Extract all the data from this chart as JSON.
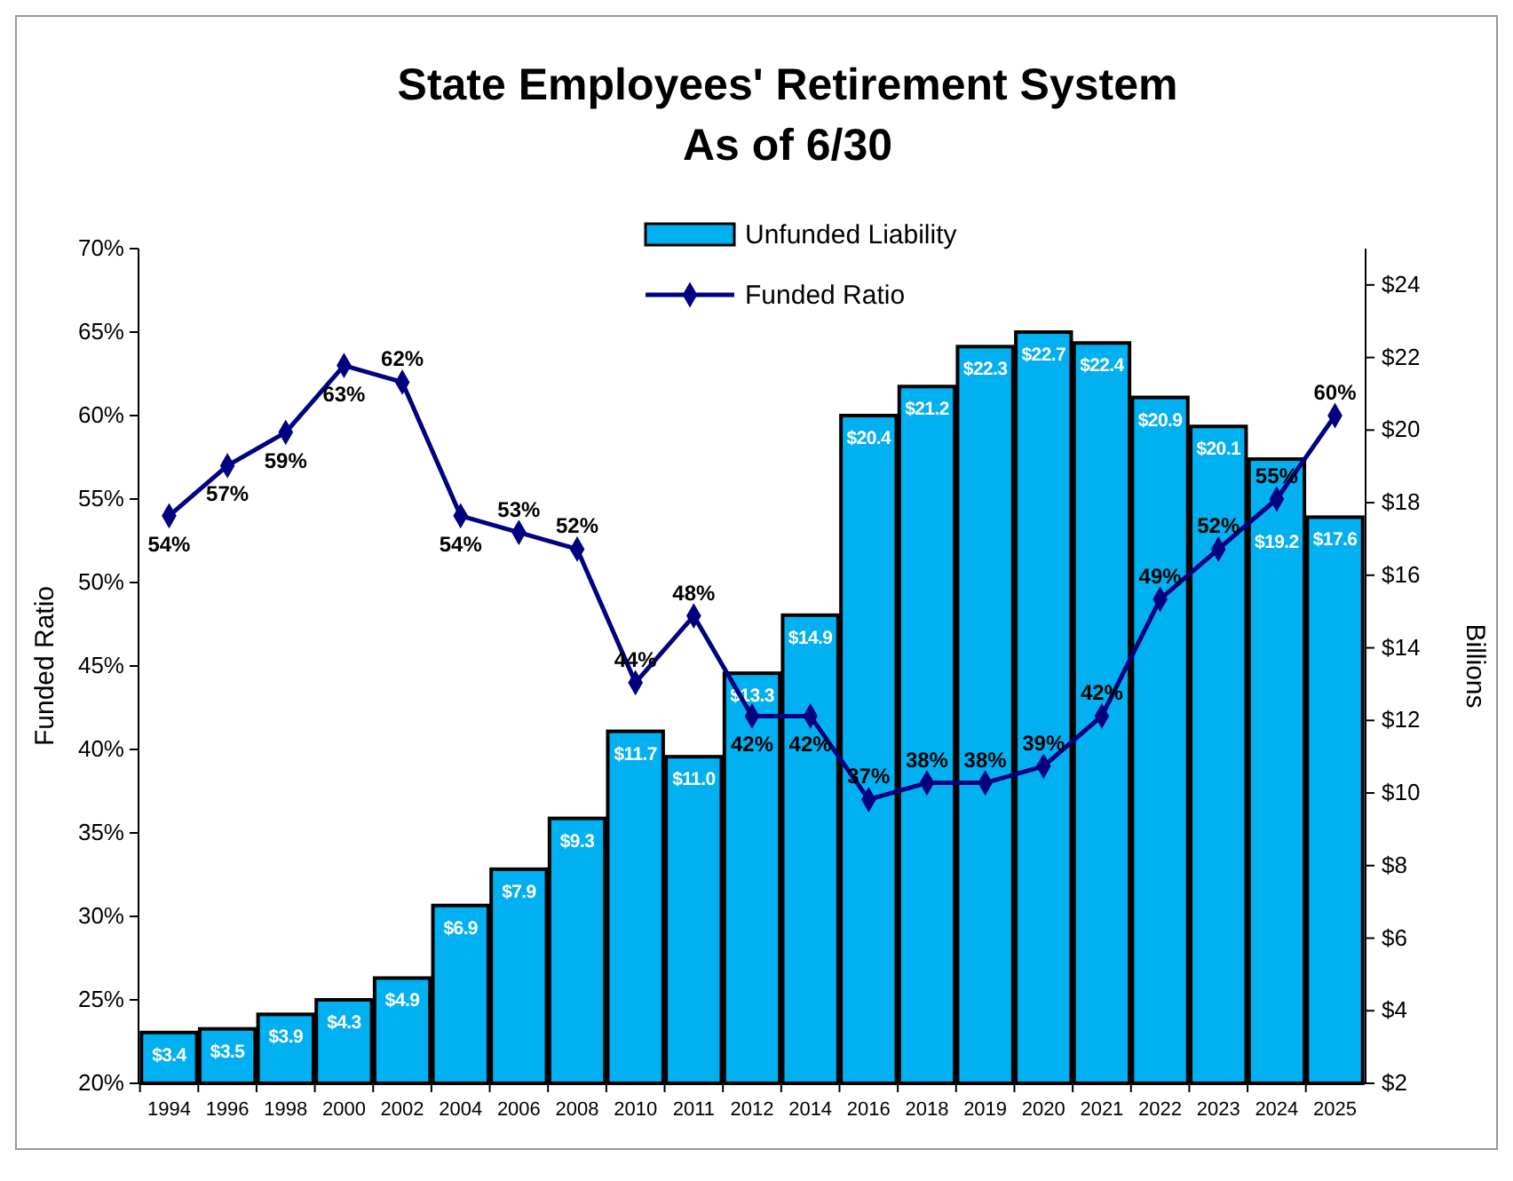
{
  "chart_data": {
    "type": "bar",
    "title": "State Employees' Retirement System\nAs of 6/30",
    "ylabel": "Funded Ratio",
    "y2label": "Billions",
    "categories": [
      "1994",
      "1996",
      "1998",
      "2000",
      "2002",
      "2004",
      "2006",
      "2008",
      "2010",
      "2011",
      "2012",
      "2014",
      "2016",
      "2018",
      "2019",
      "2020",
      "2021",
      "2022",
      "2023",
      "2024",
      "2025"
    ],
    "series": [
      {
        "name": "Unfunded Liability",
        "axis": "y2",
        "color": "#00b0f0",
        "values": [
          3.4,
          3.5,
          3.9,
          4.3,
          4.9,
          6.9,
          7.9,
          9.3,
          11.7,
          11.0,
          13.3,
          14.9,
          20.4,
          21.2,
          22.3,
          22.7,
          22.4,
          20.9,
          20.1,
          19.2,
          17.6
        ],
        "value_labels": [
          "$3.4",
          "$3.5",
          "$3.9",
          "$4.3",
          "$4.9",
          "$6.9",
          "$7.9",
          "$9.3",
          "$11.7",
          "$11.0",
          "$13.3",
          "$14.9",
          "$20.4",
          "$21.2",
          "$22.3",
          "$22.7",
          "$22.4",
          "$20.9",
          "$20.1",
          "$19.2",
          "$17.6"
        ]
      },
      {
        "name": "Funded Ratio",
        "type": "line",
        "color": "#000080",
        "marker": "diamond",
        "values": [
          54,
          57,
          59,
          63,
          62,
          54,
          53,
          52,
          44,
          48,
          42,
          42,
          37,
          38,
          38,
          39,
          42,
          49,
          52,
          55,
          60
        ],
        "value_labels": [
          "54%",
          "57%",
          "59%",
          "63%",
          "62%",
          "54%",
          "53%",
          "52%",
          "44%",
          "48%",
          "42%",
          "42%",
          "37%",
          "38%",
          "38%",
          "39%",
          "42%",
          "49%",
          "52%",
          "55%",
          "60%"
        ]
      }
    ],
    "ylim": [
      20,
      70
    ],
    "yticks": [
      {
        "value": 20,
        "label": "20%"
      },
      {
        "value": 25,
        "label": "25%"
      },
      {
        "value": 30,
        "label": "30%"
      },
      {
        "value": 35,
        "label": "35%"
      },
      {
        "value": 40,
        "label": "40%"
      },
      {
        "value": 45,
        "label": "45%"
      },
      {
        "value": 50,
        "label": "50%"
      },
      {
        "value": 55,
        "label": "55%"
      },
      {
        "value": 60,
        "label": "60%"
      },
      {
        "value": 65,
        "label": "65%"
      },
      {
        "value": 70,
        "label": "70%"
      }
    ],
    "y2lim": [
      2,
      25
    ],
    "y2ticks": [
      {
        "value": 2,
        "label": "$2"
      },
      {
        "value": 4,
        "label": "$4"
      },
      {
        "value": 6,
        "label": "$6"
      },
      {
        "value": 8,
        "label": "$8"
      },
      {
        "value": 10,
        "label": "$10"
      },
      {
        "value": 12,
        "label": "$12"
      },
      {
        "value": 14,
        "label": "$14"
      },
      {
        "value": 16,
        "label": "$16"
      },
      {
        "value": 18,
        "label": "$18"
      },
      {
        "value": 20,
        "label": "$20"
      },
      {
        "value": 22,
        "label": "$22"
      },
      {
        "value": 24,
        "label": "$24"
      }
    ],
    "legend": "top",
    "grid": false
  }
}
